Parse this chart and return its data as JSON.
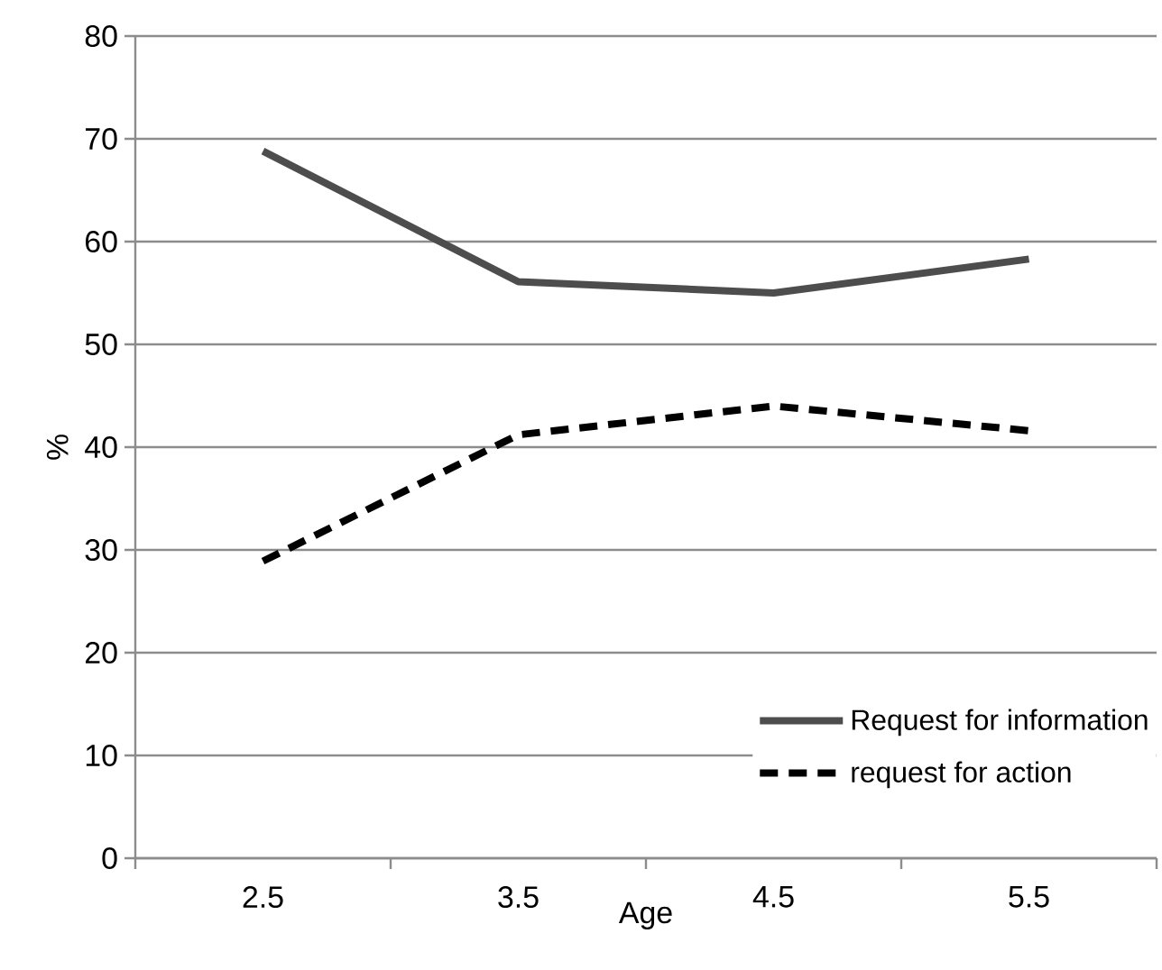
{
  "chart_data": {
    "type": "line",
    "xlabel": "Age",
    "ylabel": "%",
    "categories": [
      "2.5",
      "3.5",
      "4.5",
      "5.5"
    ],
    "series": [
      {
        "name": "Request for information",
        "color": "#4d4d4d",
        "values": [
          68.8,
          56.1,
          55.0,
          58.3
        ],
        "line_style": "solid"
      },
      {
        "name": "request for action",
        "color": "#000000",
        "values": [
          28.9,
          41.2,
          44.0,
          41.6
        ],
        "line_style": "dashed"
      }
    ],
    "ylim": [
      0,
      80
    ],
    "yticks": [
      0,
      10,
      20,
      30,
      40,
      50,
      60,
      70,
      80
    ],
    "grid": "y",
    "legend": "bottom right",
    "marker": "none"
  }
}
